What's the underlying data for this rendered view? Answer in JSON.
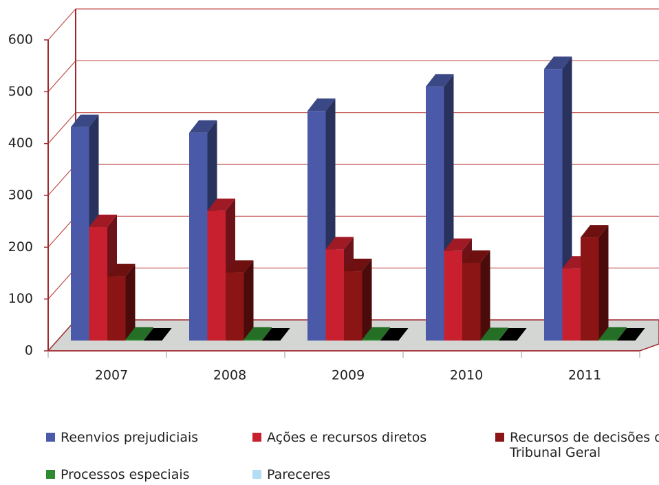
{
  "chart_data": {
    "type": "bar3d",
    "categories": [
      "2007",
      "2008",
      "2009",
      "2010",
      "2011"
    ],
    "series": [
      {
        "name": "Reenvios prejudiciais",
        "color": "#4a5aa8",
        "values": [
          412,
          401,
          443,
          490,
          524
        ]
      },
      {
        "name": "Ações e recursos diretos",
        "color": "#c8202f",
        "values": [
          219,
          250,
          176,
          173,
          139
        ]
      },
      {
        "name": "Recursos de decisões do Tribunal Geral",
        "color": "#8b1414",
        "values": [
          124,
          131,
          134,
          150,
          199
        ]
      },
      {
        "name": "Processos especiais",
        "color": "#2e8a2e",
        "values": [
          2,
          2,
          2,
          1,
          2
        ]
      },
      {
        "name": "Pareceres",
        "color": "#b3dcf5",
        "values": [
          0,
          0,
          0,
          0,
          0
        ]
      }
    ],
    "ylim": [
      0,
      600
    ],
    "yticks": [
      0,
      100,
      200,
      300,
      400,
      500,
      600
    ],
    "grid": true
  }
}
